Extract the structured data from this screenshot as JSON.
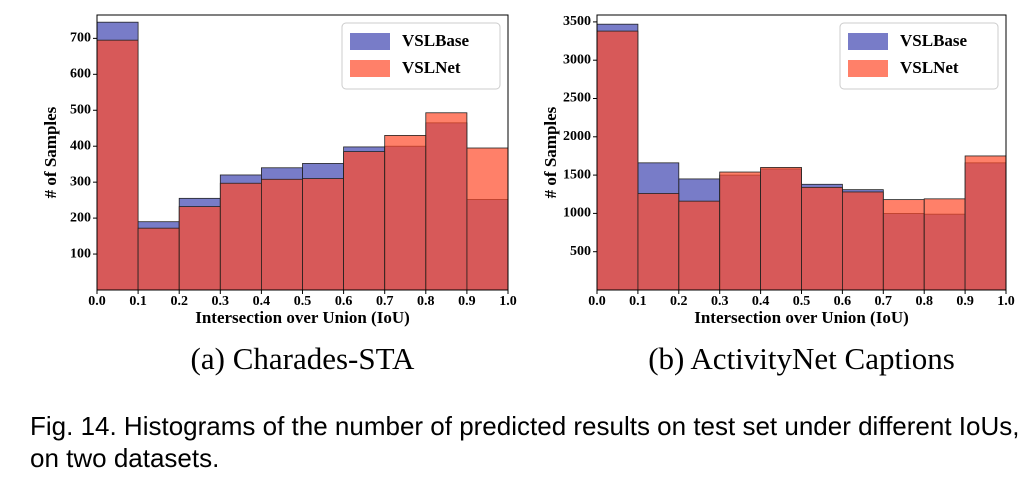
{
  "chart_data": [
    {
      "type": "histogram",
      "y_label": "# of Samples",
      "x_label": "Intersection over Union (IoU)",
      "subcaption": "(a) Charades-STA",
      "bins": [
        0.0,
        0.1,
        0.2,
        0.3,
        0.4,
        0.5,
        0.6,
        0.7,
        0.8,
        0.9,
        1.0
      ],
      "series": [
        {
          "name": "VSLBase",
          "color": "#3f45b0",
          "values": [
            745,
            190,
            255,
            320,
            340,
            352,
            398,
            400,
            465,
            252
          ]
        },
        {
          "name": "VSLNet",
          "color": "#ff4a2a",
          "values": [
            695,
            172,
            232,
            297,
            308,
            310,
            385,
            430,
            493,
            395
          ]
        }
      ],
      "xlim": [
        0,
        1
      ],
      "ylim": [
        0,
        765
      ],
      "xticks": [
        {
          "value": 0,
          "label": "0.0"
        },
        0.1,
        0.2,
        0.3,
        0.4,
        0.5,
        0.6,
        0.7,
        0.8,
        0.9,
        {
          "value": 1,
          "label": "1.0"
        }
      ],
      "yticks": [
        100,
        200,
        300,
        400,
        500,
        600,
        700
      ],
      "legend": "upper right"
    },
    {
      "type": "histogram",
      "y_label": "# of Samples",
      "x_label": "Intersection over Union (IoU)",
      "subcaption": "(b) ActivityNet Captions",
      "bins": [
        0.0,
        0.1,
        0.2,
        0.3,
        0.4,
        0.5,
        0.6,
        0.7,
        0.8,
        0.9,
        1.0
      ],
      "series": [
        {
          "name": "VSLBase",
          "color": "#3f45b0",
          "values": [
            3470,
            1660,
            1450,
            1500,
            1580,
            1380,
            1310,
            1000,
            990,
            1660
          ]
        },
        {
          "name": "VSLNet",
          "color": "#ff4a2a",
          "values": [
            3380,
            1260,
            1160,
            1540,
            1600,
            1340,
            1280,
            1180,
            1190,
            1750
          ]
        }
      ],
      "xlim": [
        0,
        1
      ],
      "ylim": [
        0,
        3590
      ],
      "xticks": [
        {
          "value": 0,
          "label": "0.0"
        },
        0.1,
        0.2,
        0.3,
        0.4,
        0.5,
        0.6,
        0.7,
        0.8,
        0.9,
        {
          "value": 1,
          "label": "1.0"
        }
      ],
      "yticks": [
        500,
        1000,
        1500,
        2000,
        2500,
        3000,
        3500
      ],
      "legend": "upper right"
    }
  ],
  "caption": "Fig. 14. Histograms of the number of predicted results on test set under different IoUs, on two datasets."
}
